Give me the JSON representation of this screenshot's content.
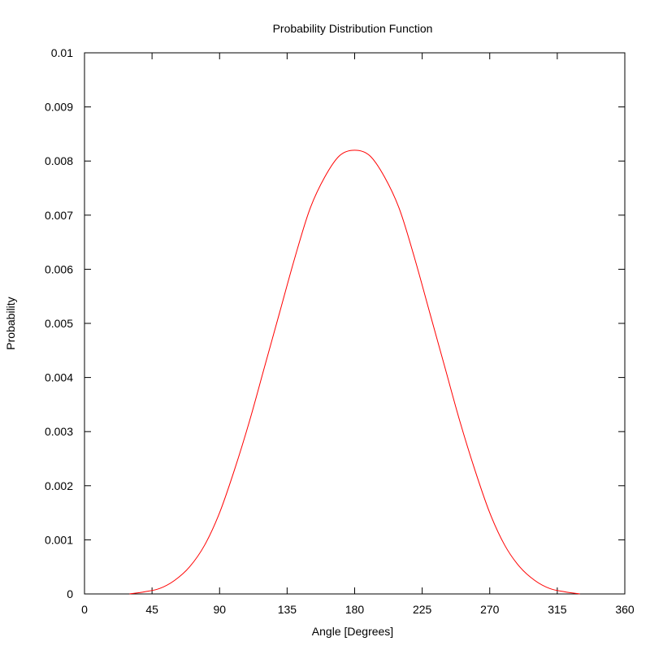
{
  "chart_data": {
    "type": "line",
    "title": "Probability Distribution Function",
    "xlabel": "Angle [Degrees]",
    "ylabel": "Probability",
    "xlim": [
      0,
      360
    ],
    "ylim": [
      0,
      0.01
    ],
    "x_ticks": [
      0,
      45,
      90,
      135,
      180,
      225,
      270,
      315,
      360
    ],
    "y_ticks": [
      0,
      0.001,
      0.002,
      0.003,
      0.004,
      0.005,
      0.006,
      0.007,
      0.008,
      0.009,
      0.01
    ],
    "x_tick_labels": [
      "0",
      "45",
      "90",
      "135",
      "180",
      "225",
      "270",
      "315",
      "360"
    ],
    "y_tick_labels": [
      "0",
      "0.001",
      "0.002",
      "0.003",
      "0.004",
      "0.005",
      "0.006",
      "0.007",
      "0.008",
      "0.009",
      "0.01"
    ],
    "grid": false,
    "series": [
      {
        "color": "#ff0000",
        "x": [
          30,
          40,
          50,
          60,
          70,
          80,
          90,
          100,
          110,
          120,
          130,
          140,
          150,
          160,
          170,
          180,
          190,
          200,
          210,
          220,
          230,
          240,
          250,
          260,
          270,
          280,
          290,
          300,
          310,
          320,
          330
        ],
        "y": [
          0.0,
          4e-05,
          0.0001,
          0.00025,
          0.0005,
          0.0009,
          0.0015,
          0.0023,
          0.0032,
          0.0042,
          0.0052,
          0.0062,
          0.0071,
          0.0077,
          0.0081,
          0.0082,
          0.0081,
          0.0077,
          0.0071,
          0.0062,
          0.0052,
          0.0042,
          0.0032,
          0.0023,
          0.0015,
          0.0009,
          0.0005,
          0.00025,
          0.0001,
          4e-05,
          0.0
        ]
      }
    ]
  }
}
